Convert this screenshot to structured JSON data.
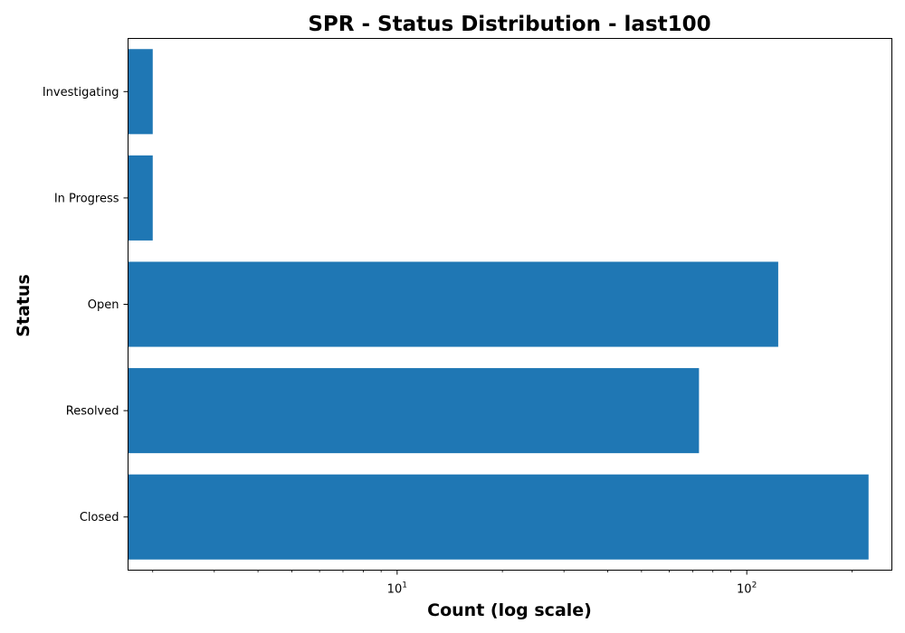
{
  "chart_data": {
    "type": "bar",
    "orientation": "horizontal",
    "title": "SPR - Status Distribution - last100",
    "xlabel": "Count (log scale)",
    "ylabel": "Status",
    "x_scale": "log",
    "xlim": [
      1.7,
      260
    ],
    "x_ticks": [
      {
        "value": 10,
        "base": "10",
        "exponent": "1"
      },
      {
        "value": 100,
        "base": "10",
        "exponent": "2"
      }
    ],
    "categories": [
      "Investigating",
      "In Progress",
      "Open",
      "Resolved",
      "Closed"
    ],
    "values": [
      2,
      2,
      123,
      73,
      223
    ],
    "grid": false,
    "legend": "none",
    "colors": {
      "bar": "#1f77b4",
      "axis": "#000000",
      "background": "#ffffff"
    }
  }
}
